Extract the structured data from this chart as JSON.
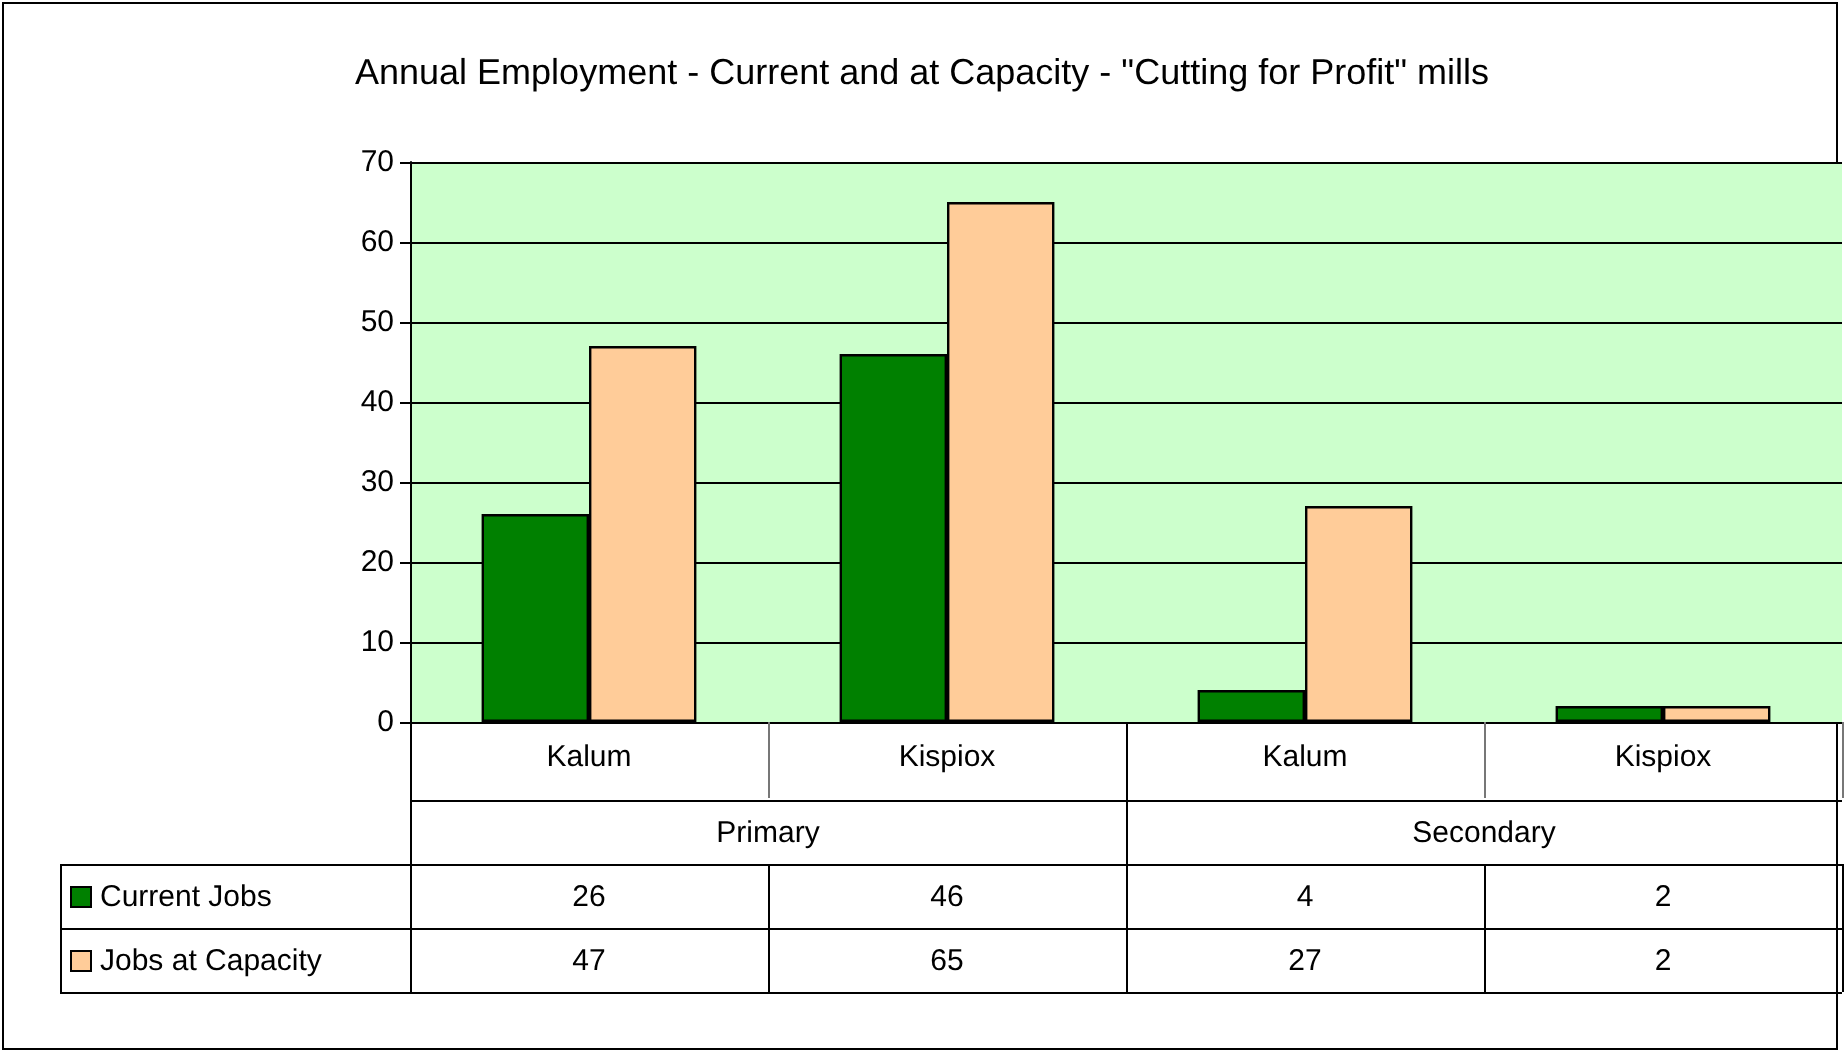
{
  "chart_data": {
    "type": "bar",
    "title": "Annual Employment - Current and at Capacity - \"Cutting for Profit\" mills",
    "categories": [
      "Kalum",
      "Kispiox",
      "Kalum",
      "Kispiox"
    ],
    "annotations": [
      "Primary",
      "Secondary"
    ],
    "series": [
      {
        "name": "Current Jobs",
        "color": "#008000",
        "values": [
          26,
          46,
          4,
          2
        ]
      },
      {
        "name": "Jobs at Capacity",
        "color": "#ffcc99",
        "values": [
          47,
          65,
          27,
          2
        ]
      }
    ],
    "ylim": [
      0,
      70
    ],
    "yticks": [
      0,
      10,
      20,
      30,
      40,
      50,
      60,
      70
    ],
    "grid": "y",
    "data_labels": true,
    "legend": "bottom left"
  }
}
